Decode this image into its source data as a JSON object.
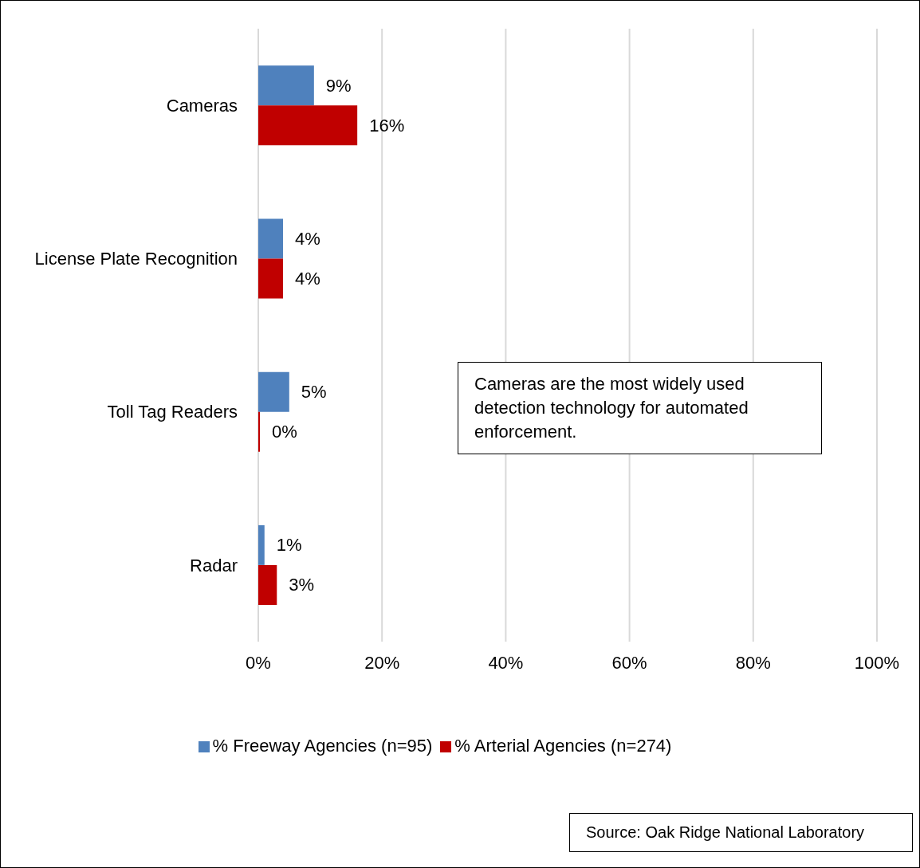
{
  "chart_data": {
    "type": "bar",
    "orientation": "horizontal",
    "categories": [
      "Cameras",
      "License Plate Recognition",
      "Toll Tag Readers",
      "Radar"
    ],
    "series": [
      {
        "name": "% Freeway Agencies (n=95)",
        "color": "#4f81bd",
        "values": [
          9,
          4,
          5,
          1
        ],
        "value_labels": [
          "9%",
          "4%",
          "5%",
          "1%"
        ]
      },
      {
        "name": "% Arterial Agencies (n=274)",
        "color": "#c00000",
        "values": [
          16,
          4,
          0,
          3
        ],
        "value_labels": [
          "16%",
          "4%",
          "0%",
          "3%"
        ]
      }
    ],
    "xlim": [
      0,
      100
    ],
    "xticks": [
      {
        "value": 0,
        "label": "0%"
      },
      {
        "value": 20,
        "label": "20%"
      },
      {
        "value": 40,
        "label": "40%"
      },
      {
        "value": 60,
        "label": "60%"
      },
      {
        "value": 80,
        "label": "80%"
      },
      {
        "value": 100,
        "label": "100%"
      }
    ],
    "grid": "x",
    "legend": "bottom",
    "annotations": [
      "Cameras are the most widely used detection technology for automated enforcement.",
      "Source:  Oak Ridge National Laboratory"
    ]
  }
}
